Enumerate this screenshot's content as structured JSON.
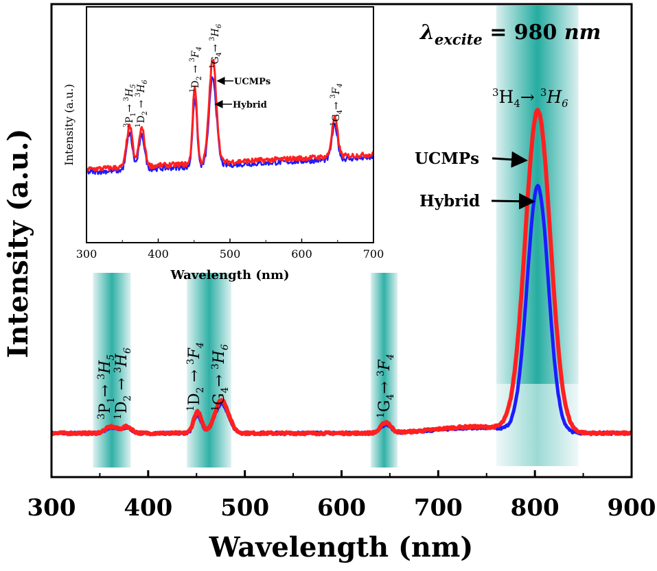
{
  "chart_data": [
    {
      "type": "line",
      "xlabel": "Wavelength (nm)",
      "ylabel": "Intensity (a.u.)",
      "xlim": [
        300,
        900
      ],
      "ylim": [
        0,
        1
      ],
      "xticks": [
        "300",
        "400",
        "500",
        "600",
        "700",
        "800",
        "900"
      ],
      "annotation_excite": "λexcite = 980 nm",
      "series": [
        {
          "name": "UCMPs",
          "color": "#ff2020",
          "peaks": [
            [
              362,
              0.012,
              6
            ],
            [
              378,
              0.012,
              5
            ],
            [
              451,
              0.04,
              4
            ],
            [
              476,
              0.062,
              7
            ],
            [
              646,
              0.02,
              5
            ],
            [
              738,
              0.012,
              40
            ],
            [
              803,
              0.6,
              13
            ]
          ]
        },
        {
          "name": "Hybrid",
          "color": "#1c1cff",
          "peaks": [
            [
              362,
              0.01,
              6
            ],
            [
              378,
              0.01,
              5
            ],
            [
              451,
              0.034,
              4
            ],
            [
              476,
              0.055,
              7
            ],
            [
              646,
              0.016,
              5
            ],
            [
              738,
              0.01,
              40
            ],
            [
              803,
              0.46,
              11
            ]
          ]
        }
      ],
      "bands": [
        {
          "range": [
            343,
            382
          ],
          "labels": [
            "3P1→ 3H5",
            "1D2 → 3H6"
          ]
        },
        {
          "range": [
            440,
            486
          ],
          "labels": [
            "1D2 → 3F4",
            "1G4→ 3H6"
          ]
        },
        {
          "range": [
            630,
            658
          ],
          "labels": [
            "1G4→ 3F4"
          ]
        },
        {
          "range": [
            760,
            845
          ],
          "labels": [
            "3H4→ 3H6"
          ]
        }
      ],
      "arrow_labels": [
        "UCMPs",
        "Hybrid"
      ]
    },
    {
      "type": "line",
      "inset": true,
      "xlabel": "Wavelength (nm)",
      "ylabel": "Intensity (a.u.)",
      "xlim": [
        300,
        700
      ],
      "xticks": [
        "300",
        "400",
        "500",
        "600",
        "700"
      ],
      "series": [
        {
          "name": "UCMPs",
          "color": "#ff2020",
          "peaks": [
            [
              360,
              0.28,
              4
            ],
            [
              377,
              0.26,
              4
            ],
            [
              451,
              0.52,
              3
            ],
            [
              476,
              0.7,
              5
            ],
            [
              646,
              0.26,
              4
            ]
          ]
        },
        {
          "name": "Hybrid",
          "color": "#1c1cff",
          "peaks": [
            [
              360,
              0.25,
              4
            ],
            [
              377,
              0.23,
              4
            ],
            [
              451,
              0.47,
              3
            ],
            [
              476,
              0.6,
              5
            ],
            [
              646,
              0.23,
              4
            ]
          ]
        }
      ],
      "peak_labels": [
        "3P1→ 3H5",
        "1D2 → 3H6",
        "1D2 → 3F4",
        "1G4→ 3H6",
        "1G4→ 3F4"
      ],
      "arrow_labels": [
        "UCMPs",
        "Hybrid"
      ]
    }
  ]
}
